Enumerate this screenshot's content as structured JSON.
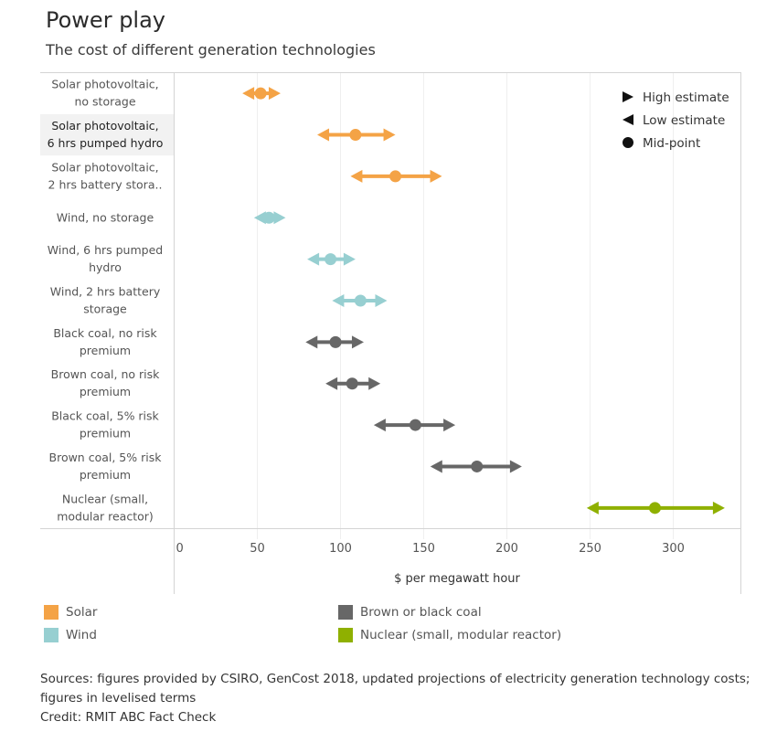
{
  "header": {
    "title": "Power play",
    "subtitle": "The cost of different generation technologies"
  },
  "chart_data": {
    "type": "range-dot",
    "title": "Power play",
    "subtitle": "The cost of different generation technologies",
    "xlabel": "$ per megawatt hour",
    "ylabel": "",
    "xlim": [
      0,
      340
    ],
    "xticks": [
      0,
      50,
      100,
      150,
      200,
      250,
      300
    ],
    "grid": true,
    "highlighted_row": 1,
    "categories": [
      "Solar photovoltaic, no storage",
      "Solar photovoltaic, 6 hrs pumped hydro",
      "Solar photovoltaic, 2 hrs battery stora..",
      "Wind, no storage",
      "Wind, 6 hrs pumped hydro",
      "Wind, 2 hrs battery storage",
      "Black coal, no risk premium",
      "Brown coal, no risk premium",
      "Black coal, 5% risk premium",
      "Brown coal, 5% risk premium",
      "Nuclear (small, modular reactor)"
    ],
    "category_lines": [
      [
        "Solar photovoltaic,",
        "no storage"
      ],
      [
        "Solar photovoltaic,",
        "6 hrs pumped hydro"
      ],
      [
        "Solar photovoltaic,",
        "2 hrs battery stora.."
      ],
      [
        "Wind, no storage"
      ],
      [
        "Wind, 6 hrs pumped",
        "hydro"
      ],
      [
        "Wind, 2 hrs battery",
        "storage"
      ],
      [
        "Black coal, no risk",
        "premium"
      ],
      [
        "Brown coal, no risk",
        "premium"
      ],
      [
        "Black coal, 5% risk",
        "premium"
      ],
      [
        "Brown coal, 5% risk",
        "premium"
      ],
      [
        "Nuclear (small,",
        "modular reactor)"
      ]
    ],
    "series": [
      {
        "name": "Low estimate",
        "values": [
          41,
          86,
          106,
          48,
          80,
          95,
          79,
          91,
          120,
          154,
          248
        ]
      },
      {
        "name": "Mid-point",
        "values": [
          52,
          109,
          133,
          57,
          94,
          112,
          97,
          107,
          145,
          182,
          289
        ]
      },
      {
        "name": "High estimate",
        "values": [
          64,
          133,
          161,
          67,
          109,
          128,
          114,
          124,
          169,
          209,
          331
        ]
      }
    ],
    "groups": [
      "solar",
      "solar",
      "solar",
      "wind",
      "wind",
      "wind",
      "coal",
      "coal",
      "coal",
      "coal",
      "nuclear"
    ],
    "shape_legend": {
      "position": "top-right",
      "items": [
        {
          "shape": "triangle-right",
          "label": "High estimate"
        },
        {
          "shape": "triangle-left",
          "label": "Low estimate"
        },
        {
          "shape": "circle",
          "label": "Mid-point"
        }
      ]
    },
    "color_legend": {
      "position": "bottom",
      "items": [
        {
          "key": "solar",
          "label": "Solar",
          "color": "#f4a346"
        },
        {
          "key": "wind",
          "label": "Wind",
          "color": "#97cfd1"
        },
        {
          "key": "coal",
          "label": "Brown or black coal",
          "color": "#676767"
        },
        {
          "key": "nuclear",
          "label": "Nuclear (small, modular reactor)",
          "color": "#8fb000"
        }
      ]
    }
  },
  "footer": {
    "sources": "Sources: figures provided by CSIRO, GenCost 2018, updated projections of electricity generation technology costs; figures in levelised terms",
    "credit": "Credit: RMIT ABC Fact Check"
  }
}
